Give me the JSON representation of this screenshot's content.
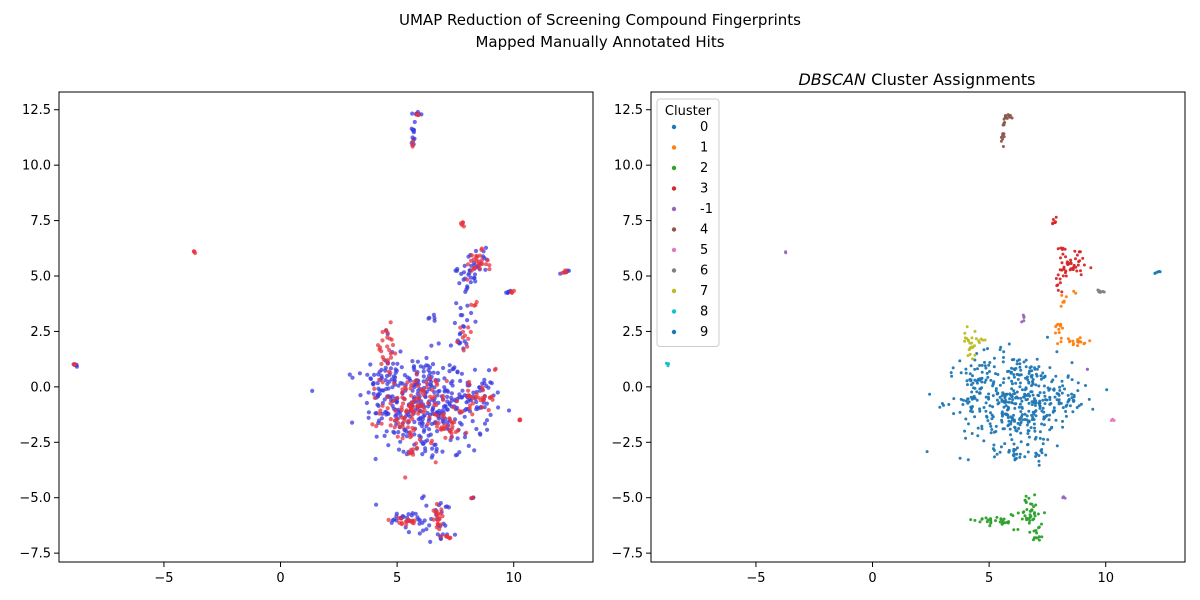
{
  "figure": {
    "suptitle_line1": "UMAP Reduction of Screening Compound Fingerprints",
    "suptitle_line2": "Mapped Manually Annotated Hits"
  },
  "chart_data": [
    {
      "type": "scatter",
      "title": "",
      "xlabel": "",
      "ylabel": "",
      "xlim": [
        -9.5,
        13.4
      ],
      "ylim": [
        -7.9,
        13.3
      ],
      "xticks": [
        -5,
        0,
        5,
        10
      ],
      "yticks": [
        -7.5,
        -5.0,
        -2.5,
        0.0,
        2.5,
        5.0,
        7.5,
        10.0,
        12.5
      ],
      "grid": false,
      "series": [
        {
          "color": "#3a3ae0",
          "clusters": [
            {
              "cx": 5.8,
              "cy": -0.7,
              "sx": 1.1,
              "sy": 1.1,
              "n": 260
            },
            {
              "cx": 4.6,
              "cy": 0.5,
              "sx": 0.35,
              "sy": 1.1,
              "n": 40
            },
            {
              "cx": 7.2,
              "cy": -1.0,
              "sx": 0.9,
              "sy": 0.9,
              "n": 70
            },
            {
              "cx": 8.4,
              "cy": -0.5,
              "sx": 0.5,
              "sy": 0.5,
              "n": 40
            },
            {
              "cx": 8.3,
              "cy": 5.4,
              "sx": 0.35,
              "sy": 0.4,
              "n": 30
            },
            {
              "cx": 8.0,
              "cy": 4.2,
              "sx": 0.2,
              "sy": 0.6,
              "n": 15
            },
            {
              "cx": 7.8,
              "cy": 2.5,
              "sx": 0.2,
              "sy": 0.5,
              "n": 15
            },
            {
              "cx": 5.7,
              "cy": 11.4,
              "sx": 0.08,
              "sy": 0.5,
              "n": 12
            },
            {
              "cx": 5.9,
              "cy": 12.3,
              "sx": 0.08,
              "sy": 0.05,
              "n": 6
            },
            {
              "cx": 5.5,
              "cy": -6.0,
              "sx": 0.5,
              "sy": 0.2,
              "n": 25
            },
            {
              "cx": 6.8,
              "cy": -6.0,
              "sx": 0.4,
              "sy": 0.6,
              "n": 30
            },
            {
              "cx": 6.2,
              "cy": -3.0,
              "sx": 0.7,
              "sy": 0.1,
              "n": 15
            },
            {
              "cx": 9.8,
              "cy": 4.3,
              "sx": 0.1,
              "sy": 0.05,
              "n": 5
            },
            {
              "cx": 12.2,
              "cy": 5.2,
              "sx": 0.1,
              "sy": 0.05,
              "n": 5
            },
            {
              "cx": -8.8,
              "cy": 1.0,
              "sx": 0.05,
              "sy": 0.05,
              "n": 4
            },
            {
              "cx": 8.2,
              "cy": -5.0,
              "sx": 0.05,
              "sy": 0.05,
              "n": 3
            },
            {
              "cx": 6.5,
              "cy": 3.1,
              "sx": 0.1,
              "sy": 0.1,
              "n": 5
            }
          ]
        },
        {
          "color": "#e8323c",
          "clusters": [
            {
              "cx": 5.7,
              "cy": -1.0,
              "sx": 0.7,
              "sy": 0.8,
              "n": 120
            },
            {
              "cx": 4.5,
              "cy": 1.6,
              "sx": 0.3,
              "sy": 0.6,
              "n": 25
            },
            {
              "cx": 7.2,
              "cy": -1.8,
              "sx": 0.4,
              "sy": 0.3,
              "n": 25
            },
            {
              "cx": 8.5,
              "cy": -0.5,
              "sx": 0.4,
              "sy": 0.3,
              "n": 30
            },
            {
              "cx": 8.4,
              "cy": 5.5,
              "sx": 0.25,
              "sy": 0.3,
              "n": 25
            },
            {
              "cx": 7.8,
              "cy": 7.4,
              "sx": 0.05,
              "sy": 0.1,
              "n": 5
            },
            {
              "cx": 7.9,
              "cy": 2.2,
              "sx": 0.15,
              "sy": 0.4,
              "n": 10
            },
            {
              "cx": 5.4,
              "cy": -6.1,
              "sx": 0.3,
              "sy": 0.1,
              "n": 15
            },
            {
              "cx": 6.7,
              "cy": -5.7,
              "sx": 0.2,
              "sy": 0.4,
              "n": 20
            },
            {
              "cx": 7.2,
              "cy": -6.8,
              "sx": 0.05,
              "sy": 0.05,
              "n": 5
            },
            {
              "cx": 5.6,
              "cy": -3.0,
              "sx": 0.1,
              "sy": 0.1,
              "n": 6
            },
            {
              "cx": 9.9,
              "cy": 4.3,
              "sx": 0.05,
              "sy": 0.05,
              "n": 4
            },
            {
              "cx": 12.2,
              "cy": 5.2,
              "sx": 0.05,
              "sy": 0.05,
              "n": 4
            },
            {
              "cx": -3.7,
              "cy": 6.1,
              "sx": 0.03,
              "sy": 0.03,
              "n": 3
            },
            {
              "cx": -8.8,
              "cy": 1.0,
              "sx": 0.03,
              "sy": 0.03,
              "n": 3
            },
            {
              "cx": 10.3,
              "cy": -1.5,
              "sx": 0.03,
              "sy": 0.03,
              "n": 3
            },
            {
              "cx": 9.2,
              "cy": 0.8,
              "sx": 0.03,
              "sy": 0.03,
              "n": 2
            },
            {
              "cx": 8.2,
              "cy": -5.0,
              "sx": 0.03,
              "sy": 0.03,
              "n": 2
            },
            {
              "cx": 5.9,
              "cy": 12.3,
              "sx": 0.05,
              "sy": 0.05,
              "n": 4
            },
            {
              "cx": 5.6,
              "cy": 10.9,
              "sx": 0.05,
              "sy": 0.05,
              "n": 3
            },
            {
              "cx": 8.3,
              "cy": 3.8,
              "sx": 0.05,
              "sy": 0.1,
              "n": 4
            }
          ]
        }
      ]
    },
    {
      "type": "scatter",
      "title_prefix": "DBSCAN",
      "title_suffix": " Cluster Assignments",
      "xlabel": "",
      "ylabel": "",
      "xlim": [
        -9.5,
        13.4
      ],
      "ylim": [
        -7.9,
        13.3
      ],
      "xticks": [
        -5,
        0,
        5,
        10
      ],
      "yticks": [
        -7.5,
        -5.0,
        -2.5,
        0.0,
        2.5,
        5.0,
        7.5,
        10.0,
        12.5
      ],
      "grid": false,
      "legend": {
        "title": "Cluster",
        "placement": "upper-left",
        "entries": [
          {
            "label": "0",
            "color": "#1f77b4"
          },
          {
            "label": "1",
            "color": "#ff7f0e"
          },
          {
            "label": "2",
            "color": "#2ca02c"
          },
          {
            "label": "3",
            "color": "#d62728"
          },
          {
            "label": "-1",
            "color": "#9467bd"
          },
          {
            "label": "4",
            "color": "#8c564b"
          },
          {
            "label": "5",
            "color": "#e377c2"
          },
          {
            "label": "6",
            "color": "#7f7f7f"
          },
          {
            "label": "7",
            "color": "#bcbd22"
          },
          {
            "label": "8",
            "color": "#17becf"
          },
          {
            "label": "9",
            "color": "#1f77b4"
          }
        ]
      },
      "series": [
        {
          "name": "0",
          "color": "#1f77b4",
          "clusters": [
            {
              "cx": 6.2,
              "cy": -0.6,
              "sx": 1.2,
              "sy": 1.1,
              "n": 420
            },
            {
              "cx": 4.4,
              "cy": 0.3,
              "sx": 0.3,
              "sy": 0.5,
              "n": 30
            },
            {
              "cx": 8.3,
              "cy": -0.5,
              "sx": 0.5,
              "sy": 0.4,
              "n": 40
            },
            {
              "cx": 6.1,
              "cy": -3.0,
              "sx": 0.2,
              "sy": 0.15,
              "n": 12
            },
            {
              "cx": 7.2,
              "cy": -3.0,
              "sx": 0.15,
              "sy": 0.15,
              "n": 8
            }
          ]
        },
        {
          "name": "1",
          "color": "#ff7f0e",
          "clusters": [
            {
              "cx": 8.6,
              "cy": 2.0,
              "sx": 0.4,
              "sy": 0.12,
              "n": 20
            },
            {
              "cx": 8.0,
              "cy": 2.7,
              "sx": 0.1,
              "sy": 0.3,
              "n": 10
            },
            {
              "cx": 8.2,
              "cy": 3.9,
              "sx": 0.08,
              "sy": 0.15,
              "n": 6
            },
            {
              "cx": 8.7,
              "cy": 4.3,
              "sx": 0.05,
              "sy": 0.05,
              "n": 2
            }
          ]
        },
        {
          "name": "2",
          "color": "#2ca02c",
          "clusters": [
            {
              "cx": 5.3,
              "cy": -6.0,
              "sx": 0.45,
              "sy": 0.15,
              "n": 30
            },
            {
              "cx": 6.8,
              "cy": -5.8,
              "sx": 0.25,
              "sy": 0.35,
              "n": 35
            },
            {
              "cx": 7.1,
              "cy": -6.6,
              "sx": 0.1,
              "sy": 0.2,
              "n": 10
            },
            {
              "cx": 6.6,
              "cy": -5.1,
              "sx": 0.08,
              "sy": 0.15,
              "n": 5
            }
          ]
        },
        {
          "name": "3",
          "color": "#d62728",
          "clusters": [
            {
              "cx": 8.5,
              "cy": 5.4,
              "sx": 0.3,
              "sy": 0.3,
              "n": 40
            },
            {
              "cx": 7.8,
              "cy": 7.4,
              "sx": 0.05,
              "sy": 0.1,
              "n": 8
            },
            {
              "cx": 8.1,
              "cy": 6.2,
              "sx": 0.08,
              "sy": 0.15,
              "n": 6
            },
            {
              "cx": 8.0,
              "cy": 4.7,
              "sx": 0.08,
              "sy": 0.25,
              "n": 8
            },
            {
              "cx": 8.9,
              "cy": 6.1,
              "sx": 0.05,
              "sy": 0.05,
              "n": 3
            }
          ]
        },
        {
          "name": "-1",
          "color": "#9467bd",
          "clusters": [
            {
              "cx": -3.7,
              "cy": 6.1,
              "sx": 0.02,
              "sy": 0.02,
              "n": 2
            },
            {
              "cx": 6.5,
              "cy": 3.1,
              "sx": 0.1,
              "sy": 0.1,
              "n": 5
            },
            {
              "cx": 9.2,
              "cy": 0.8,
              "sx": 0.02,
              "sy": 0.02,
              "n": 2
            },
            {
              "cx": 8.2,
              "cy": -5.0,
              "sx": 0.04,
              "sy": 0.04,
              "n": 3
            }
          ]
        },
        {
          "name": "4",
          "color": "#8c564b",
          "clusters": [
            {
              "cx": 5.8,
              "cy": 12.2,
              "sx": 0.1,
              "sy": 0.06,
              "n": 12
            },
            {
              "cx": 5.6,
              "cy": 11.2,
              "sx": 0.04,
              "sy": 0.4,
              "n": 12
            }
          ]
        },
        {
          "name": "5",
          "color": "#e377c2",
          "clusters": [
            {
              "cx": 10.3,
              "cy": -1.5,
              "sx": 0.05,
              "sy": 0.03,
              "n": 3
            }
          ]
        },
        {
          "name": "6",
          "color": "#7f7f7f",
          "clusters": [
            {
              "cx": 9.8,
              "cy": 4.3,
              "sx": 0.1,
              "sy": 0.05,
              "n": 8
            }
          ]
        },
        {
          "name": "7",
          "color": "#bcbd22",
          "clusters": [
            {
              "cx": 4.2,
              "cy": 2.0,
              "sx": 0.15,
              "sy": 0.3,
              "n": 25
            },
            {
              "cx": 4.7,
              "cy": 2.1,
              "sx": 0.1,
              "sy": 0.05,
              "n": 4
            }
          ]
        },
        {
          "name": "8",
          "color": "#17becf",
          "clusters": [
            {
              "cx": -8.8,
              "cy": 1.0,
              "sx": 0.04,
              "sy": 0.04,
              "n": 5
            }
          ]
        },
        {
          "name": "9",
          "color": "#1f77b4",
          "clusters": [
            {
              "cx": 12.2,
              "cy": 5.2,
              "sx": 0.08,
              "sy": 0.05,
              "n": 6
            }
          ]
        }
      ]
    }
  ]
}
